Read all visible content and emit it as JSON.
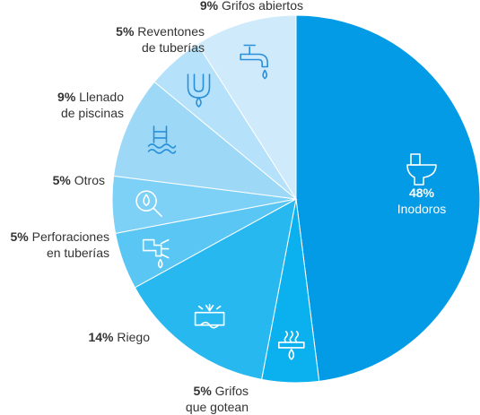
{
  "chart_data": {
    "type": "pie",
    "title": "",
    "unit": "%",
    "slices": [
      {
        "lines": [
          "Inodoros"
        ],
        "value": 48,
        "color": "#039be5",
        "icon": "toilet-icon"
      },
      {
        "lines": [
          "Grifos",
          "que gotean"
        ],
        "value": 5,
        "color": "#0bb0ee",
        "icon": "dripping-faucet-icon"
      },
      {
        "lines": [
          "Riego"
        ],
        "value": 14,
        "color": "#27b8f0",
        "icon": "irrigation-icon"
      },
      {
        "lines": [
          "Perforaciones",
          "en tuberías"
        ],
        "value": 5,
        "color": "#5ac6f3",
        "icon": "pipe-leak-icon"
      },
      {
        "lines": [
          "Otros"
        ],
        "value": 5,
        "color": "#7dd0f6",
        "icon": "magnifier-drop-icon"
      },
      {
        "lines": [
          "Llenado",
          "de piscinas"
        ],
        "value": 9,
        "color": "#9dd9f7",
        "icon": "pool-ladder-icon"
      },
      {
        "lines": [
          "Reventones",
          "de tuberías"
        ],
        "value": 5,
        "color": "#b5e2fa",
        "icon": "burst-pipe-icon"
      },
      {
        "lines": [
          "Grifos abiertos"
        ],
        "value": 9,
        "color": "#cfeafb",
        "icon": "open-faucet-icon"
      }
    ],
    "label_text_color": "#333333",
    "inside_label_color": "#ffffff",
    "icon_stroke_color": "#ffffff",
    "icon_stroke_color_light": "#2a8fd8"
  }
}
